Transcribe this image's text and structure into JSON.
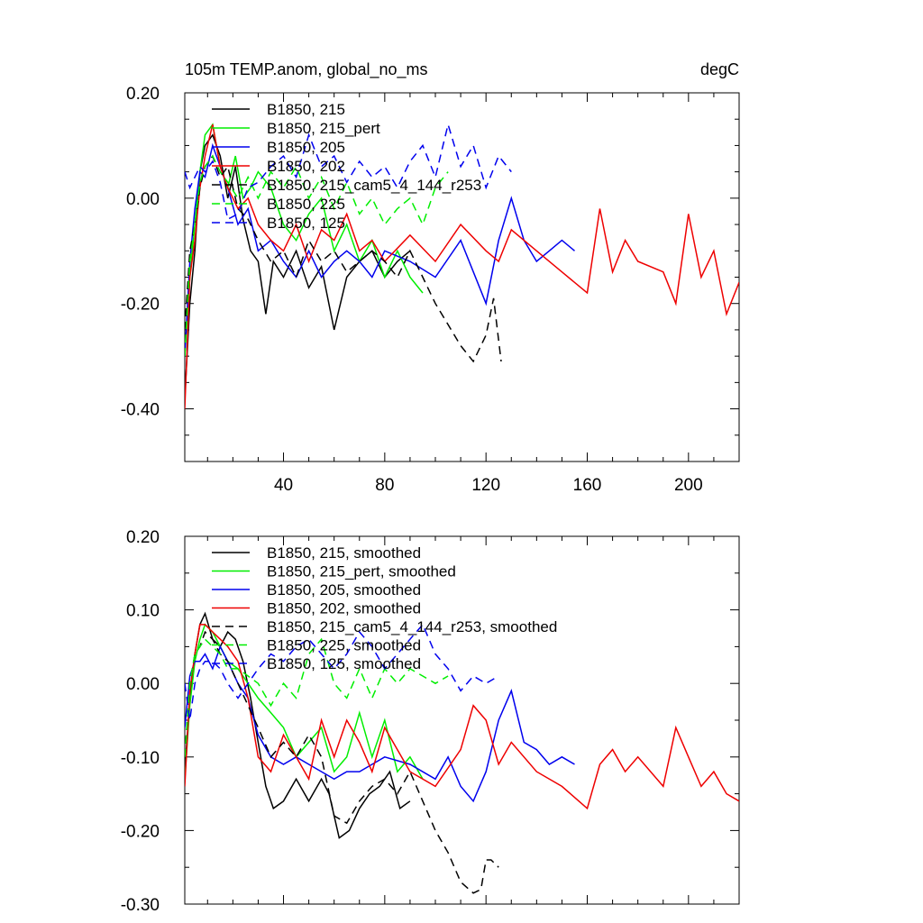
{
  "chart_data": [
    {
      "type": "line",
      "title": "105m TEMP.anom, global_no_ms",
      "units": "degC",
      "xlim": [
        1,
        220
      ],
      "ylim": [
        -0.5,
        0.2
      ],
      "xticks": [
        40,
        80,
        120,
        160,
        200
      ],
      "xtick_labels": [
        "40",
        "80",
        "120",
        "160",
        "200"
      ],
      "yticks": [
        0.2,
        0.0,
        -0.2,
        -0.4
      ],
      "ytick_labels": [
        "0.20",
        "0.00",
        "-0.20",
        "-0.40"
      ],
      "legend_position": "top-left",
      "series": [
        {
          "name": "B1850, 215",
          "color": "#000000",
          "dash": "solid",
          "x": [
            1,
            3,
            5,
            7,
            9,
            12,
            15,
            18,
            21,
            24,
            27,
            30,
            33,
            36,
            40,
            45,
            50,
            55,
            60,
            65,
            70,
            75,
            80,
            85,
            90
          ],
          "y": [
            -0.38,
            -0.2,
            -0.1,
            0.05,
            0.1,
            0.12,
            0.08,
            0.0,
            0.06,
            -0.04,
            -0.1,
            -0.12,
            -0.22,
            -0.12,
            -0.15,
            -0.1,
            -0.17,
            -0.13,
            -0.25,
            -0.15,
            -0.12,
            -0.1,
            -0.15,
            -0.12,
            -0.1
          ]
        },
        {
          "name": "B1850, 215_pert",
          "color": "#00ee00",
          "dash": "solid",
          "x": [
            1,
            3,
            5,
            7,
            9,
            12,
            15,
            18,
            21,
            24,
            27,
            30,
            35,
            40,
            45,
            50,
            55,
            60,
            65,
            70,
            75,
            80,
            85,
            90,
            95
          ],
          "y": [
            -0.3,
            -0.15,
            -0.05,
            0.05,
            0.12,
            0.14,
            0.06,
            0.02,
            0.08,
            0.0,
            0.02,
            0.05,
            0.02,
            -0.05,
            -0.08,
            -0.03,
            0.0,
            -0.1,
            -0.05,
            -0.12,
            -0.08,
            -0.15,
            -0.1,
            -0.15,
            -0.18
          ]
        },
        {
          "name": "B1850, 205",
          "color": "#0000ee",
          "dash": "solid",
          "x": [
            1,
            3,
            5,
            7,
            9,
            12,
            15,
            18,
            22,
            26,
            30,
            35,
            40,
            45,
            50,
            55,
            60,
            65,
            70,
            75,
            80,
            90,
            100,
            110,
            120,
            125,
            130,
            135,
            140,
            145,
            150,
            155
          ],
          "y": [
            -0.3,
            -0.12,
            -0.02,
            0.05,
            0.04,
            0.1,
            0.06,
            0.02,
            -0.05,
            -0.02,
            -0.1,
            -0.08,
            -0.12,
            -0.15,
            -0.1,
            -0.15,
            -0.12,
            -0.1,
            -0.12,
            -0.15,
            -0.1,
            -0.12,
            -0.15,
            -0.08,
            -0.2,
            -0.08,
            0.0,
            -0.08,
            -0.12,
            -0.1,
            -0.08,
            -0.1
          ]
        },
        {
          "name": "B1850, 202",
          "color": "#ee0000",
          "dash": "solid",
          "x": [
            1,
            3,
            5,
            7,
            9,
            12,
            15,
            18,
            22,
            26,
            30,
            35,
            40,
            45,
            50,
            55,
            60,
            65,
            70,
            75,
            80,
            90,
            100,
            110,
            120,
            125,
            130,
            140,
            150,
            160,
            165,
            170,
            175,
            180,
            190,
            195,
            200,
            205,
            210,
            215,
            220
          ],
          "y": [
            -0.4,
            -0.15,
            -0.08,
            0.02,
            0.08,
            0.14,
            0.06,
            0.02,
            -0.02,
            0.0,
            -0.05,
            -0.08,
            -0.1,
            -0.05,
            -0.12,
            -0.06,
            -0.08,
            -0.03,
            -0.1,
            -0.08,
            -0.12,
            -0.07,
            -0.12,
            -0.05,
            -0.1,
            -0.12,
            -0.06,
            -0.1,
            -0.14,
            -0.18,
            -0.02,
            -0.14,
            -0.08,
            -0.12,
            -0.14,
            -0.2,
            -0.03,
            -0.15,
            -0.1,
            -0.22,
            -0.16
          ]
        },
        {
          "name": "B1850, 215_cam5_4_144_r253",
          "color": "#000000",
          "dash": "dash",
          "x": [
            1,
            3,
            5,
            7,
            9,
            12,
            15,
            18,
            22,
            26,
            30,
            35,
            40,
            45,
            50,
            55,
            60,
            65,
            70,
            75,
            80,
            85,
            90,
            95,
            100,
            105,
            110,
            115,
            120,
            123,
            126
          ],
          "y": [
            -0.25,
            -0.1,
            -0.05,
            0.02,
            0.06,
            0.08,
            0.04,
            0.06,
            -0.02,
            -0.04,
            -0.08,
            -0.12,
            -0.1,
            -0.15,
            -0.08,
            -0.12,
            -0.1,
            -0.14,
            -0.12,
            -0.1,
            -0.12,
            -0.15,
            -0.1,
            -0.15,
            -0.2,
            -0.24,
            -0.28,
            -0.31,
            -0.26,
            -0.19,
            -0.31
          ]
        },
        {
          "name": "B1850, 225",
          "color": "#00ee00",
          "dash": "dash",
          "x": [
            1,
            3,
            5,
            7,
            9,
            12,
            15,
            18,
            22,
            26,
            30,
            35,
            40,
            45,
            50,
            55,
            60,
            65,
            70,
            75,
            80,
            85,
            90,
            95,
            100,
            105
          ],
          "y": [
            -0.3,
            -0.12,
            -0.05,
            0.03,
            0.06,
            0.08,
            0.05,
            0.03,
            0.0,
            0.04,
            0.0,
            0.05,
            0.02,
            0.06,
            0.0,
            0.04,
            -0.02,
            0.03,
            -0.03,
            0.0,
            -0.05,
            -0.02,
            0.0,
            -0.05,
            0.02,
            0.05
          ]
        },
        {
          "name": "B1850, 125",
          "color": "#0000ee",
          "dash": "dash",
          "x": [
            1,
            3,
            5,
            7,
            9,
            12,
            15,
            18,
            22,
            26,
            30,
            35,
            40,
            45,
            50,
            55,
            60,
            65,
            70,
            75,
            80,
            85,
            90,
            95,
            100,
            105,
            110,
            115,
            120,
            125,
            130
          ],
          "y": [
            0.05,
            0.02,
            0.04,
            0.06,
            0.05,
            0.07,
            0.03,
            -0.04,
            -0.03,
            0.02,
            0.03,
            0.06,
            0.08,
            0.04,
            0.12,
            0.06,
            0.08,
            0.03,
            0.07,
            0.04,
            0.06,
            0.02,
            0.07,
            0.1,
            0.04,
            0.14,
            0.06,
            0.1,
            0.02,
            0.08,
            0.05
          ]
        }
      ]
    },
    {
      "type": "line",
      "title": "",
      "xlim": [
        1,
        220
      ],
      "ylim": [
        -0.3,
        0.2
      ],
      "xticks": [
        40,
        80,
        120,
        160,
        200
      ],
      "xtick_labels": [],
      "yticks": [
        0.2,
        0.1,
        0.0,
        -0.1,
        -0.2,
        -0.3
      ],
      "ytick_labels": [
        "0.20",
        "0.10",
        "0.00",
        "-0.10",
        "-0.20",
        "-0.30"
      ],
      "legend_position": "top-left",
      "series": [
        {
          "name": "B1850, 215, smoothed",
          "color": "#000000",
          "dash": "solid",
          "x": [
            1,
            3,
            5,
            7,
            9,
            12,
            15,
            18,
            21,
            24,
            27,
            30,
            33,
            36,
            40,
            45,
            50,
            55,
            58,
            62,
            66,
            70,
            74,
            78,
            82,
            86,
            90
          ],
          "y": [
            -0.12,
            -0.02,
            0.04,
            0.08,
            0.095,
            0.06,
            0.05,
            0.07,
            0.06,
            0.03,
            -0.02,
            -0.08,
            -0.14,
            -0.17,
            -0.16,
            -0.13,
            -0.16,
            -0.13,
            -0.15,
            -0.21,
            -0.2,
            -0.17,
            -0.15,
            -0.14,
            -0.12,
            -0.17,
            -0.16
          ]
        },
        {
          "name": "B1850, 215_pert, smoothed",
          "color": "#00ee00",
          "dash": "solid",
          "x": [
            1,
            3,
            5,
            7,
            9,
            12,
            15,
            18,
            22,
            26,
            30,
            35,
            40,
            45,
            50,
            55,
            60,
            65,
            70,
            75,
            80,
            85,
            90,
            95
          ],
          "y": [
            -0.13,
            -0.03,
            0.03,
            0.06,
            0.08,
            0.07,
            0.05,
            0.03,
            0.02,
            0.0,
            -0.02,
            -0.04,
            -0.06,
            -0.1,
            -0.08,
            -0.06,
            -0.12,
            -0.1,
            -0.04,
            -0.1,
            -0.05,
            -0.12,
            -0.1,
            -0.13
          ]
        },
        {
          "name": "B1850, 205, smoothed",
          "color": "#0000ee",
          "dash": "solid",
          "x": [
            1,
            3,
            5,
            7,
            9,
            12,
            15,
            18,
            22,
            26,
            30,
            35,
            40,
            45,
            50,
            55,
            60,
            65,
            70,
            75,
            80,
            90,
            100,
            105,
            110,
            115,
            120,
            125,
            130,
            135,
            140,
            145,
            150,
            155
          ],
          "y": [
            -0.06,
            0.01,
            0.03,
            0.03,
            0.04,
            0.02,
            0.05,
            0.03,
            0.0,
            -0.02,
            -0.07,
            -0.1,
            -0.11,
            -0.1,
            -0.11,
            -0.12,
            -0.13,
            -0.12,
            -0.12,
            -0.11,
            -0.1,
            -0.11,
            -0.13,
            -0.1,
            -0.14,
            -0.16,
            -0.12,
            -0.05,
            -0.01,
            -0.08,
            -0.09,
            -0.11,
            -0.1,
            -0.11
          ]
        },
        {
          "name": "B1850, 202, smoothed",
          "color": "#ee0000",
          "dash": "solid",
          "x": [
            1,
            3,
            5,
            7,
            9,
            12,
            15,
            18,
            22,
            26,
            30,
            35,
            40,
            45,
            50,
            55,
            60,
            65,
            70,
            75,
            80,
            90,
            100,
            110,
            115,
            120,
            125,
            130,
            140,
            150,
            160,
            165,
            170,
            175,
            180,
            190,
            195,
            200,
            205,
            210,
            215,
            220
          ],
          "y": [
            -0.14,
            -0.01,
            0.04,
            0.08,
            0.08,
            0.07,
            0.06,
            0.05,
            0.03,
            -0.02,
            -0.1,
            -0.12,
            -0.07,
            -0.1,
            -0.13,
            -0.05,
            -0.1,
            -0.05,
            -0.08,
            -0.12,
            -0.06,
            -0.12,
            -0.14,
            -0.09,
            -0.03,
            -0.05,
            -0.11,
            -0.08,
            -0.12,
            -0.14,
            -0.17,
            -0.11,
            -0.09,
            -0.12,
            -0.1,
            -0.14,
            -0.06,
            -0.1,
            -0.14,
            -0.12,
            -0.15,
            -0.16
          ]
        },
        {
          "name": "B1850, 215_cam5_4_144_r253, smoothed",
          "color": "#000000",
          "dash": "dash",
          "x": [
            1,
            3,
            5,
            7,
            9,
            12,
            15,
            18,
            22,
            26,
            30,
            35,
            40,
            45,
            50,
            55,
            60,
            65,
            70,
            75,
            80,
            85,
            90,
            95,
            100,
            105,
            110,
            115,
            118,
            120,
            122,
            125
          ],
          "y": [
            -0.1,
            0.0,
            0.04,
            0.05,
            0.07,
            0.06,
            0.04,
            0.03,
            0.0,
            -0.03,
            -0.06,
            -0.1,
            -0.08,
            -0.1,
            -0.07,
            -0.1,
            -0.18,
            -0.19,
            -0.16,
            -0.14,
            -0.13,
            -0.15,
            -0.12,
            -0.16,
            -0.2,
            -0.23,
            -0.27,
            -0.285,
            -0.28,
            -0.24,
            -0.24,
            -0.25
          ]
        },
        {
          "name": "B1850, 225, smoothed",
          "color": "#00ee00",
          "dash": "dash",
          "x": [
            1,
            3,
            5,
            7,
            9,
            12,
            15,
            18,
            22,
            26,
            30,
            35,
            40,
            45,
            50,
            55,
            60,
            65,
            70,
            75,
            80,
            85,
            90,
            95,
            100,
            105
          ],
          "y": [
            -0.1,
            0.0,
            0.04,
            0.05,
            0.06,
            0.05,
            0.04,
            0.02,
            0.02,
            0.01,
            0.0,
            -0.03,
            0.0,
            -0.02,
            0.04,
            0.06,
            0.0,
            -0.02,
            0.02,
            -0.02,
            0.02,
            0.0,
            0.02,
            0.01,
            0.0,
            0.01
          ]
        },
        {
          "name": "B1850, 125, smoothed",
          "color": "#0000ee",
          "dash": "dash",
          "x": [
            1,
            3,
            5,
            7,
            9,
            12,
            15,
            18,
            22,
            26,
            30,
            35,
            40,
            45,
            50,
            55,
            60,
            65,
            70,
            75,
            80,
            85,
            90,
            95,
            100,
            105,
            110,
            115,
            120,
            125
          ],
          "y": [
            0.0,
            -0.05,
            0.0,
            0.02,
            0.03,
            0.03,
            0.02,
            0.0,
            -0.02,
            0.0,
            0.02,
            0.04,
            0.03,
            0.05,
            0.06,
            0.04,
            0.02,
            0.04,
            0.07,
            0.05,
            0.02,
            0.04,
            0.06,
            0.08,
            0.04,
            0.02,
            -0.01,
            0.01,
            0.0,
            0.01
          ]
        }
      ]
    }
  ]
}
